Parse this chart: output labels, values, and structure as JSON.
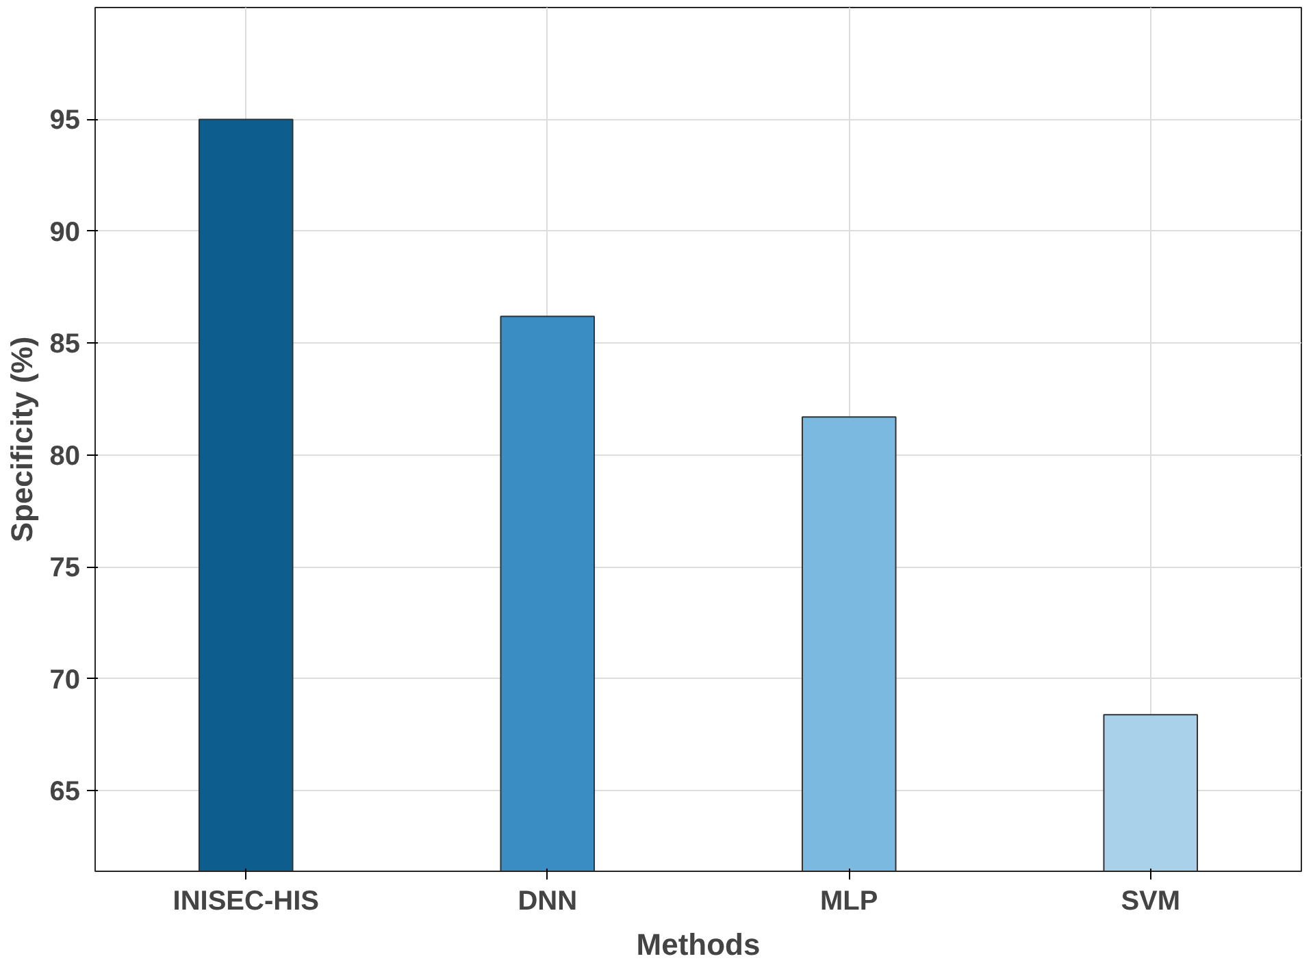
{
  "chart_data": {
    "type": "bar",
    "xlabel": "Methods",
    "ylabel": "Specificity (%)",
    "categories": [
      "INISEC-HIS",
      "DNN",
      "MLP",
      "SVM"
    ],
    "values": [
      95,
      86.2,
      81.7,
      68.4
    ],
    "colors": [
      "#0d5e8f",
      "#3a8dc3",
      "#7cb9e1",
      "#a9d2ea"
    ],
    "ylim": [
      61.4,
      100
    ],
    "yticks": [
      65,
      70,
      75,
      80,
      85,
      90,
      95
    ],
    "grid": true
  }
}
